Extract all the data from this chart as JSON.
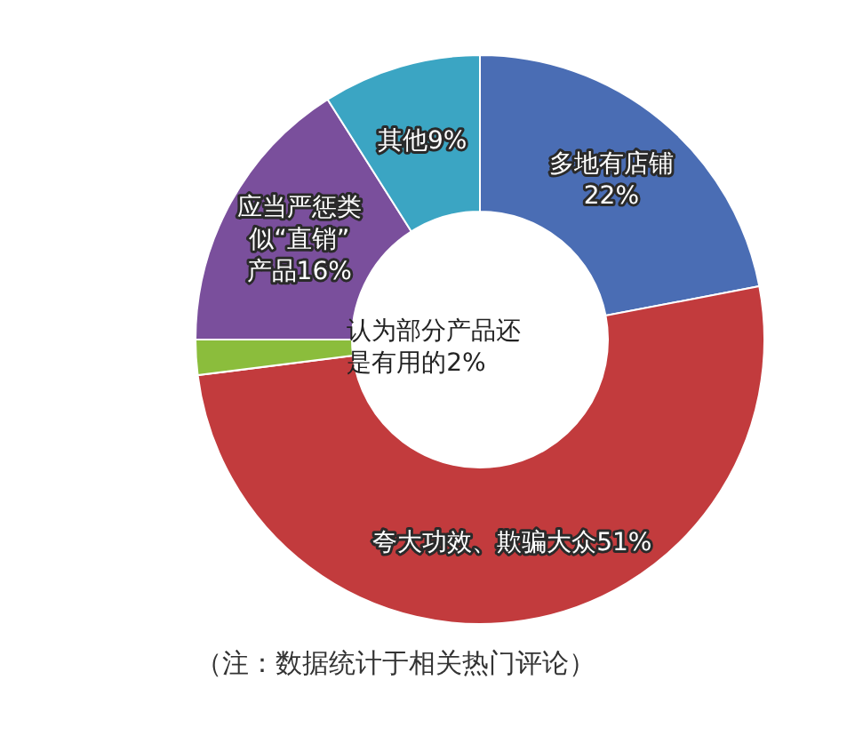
{
  "chart_data": {
    "type": "donut",
    "categories": [
      "多地有店铺",
      "夸大功效、欺骗大众",
      "认为部分产品还是有用的",
      "应当严惩类似“直销”产品",
      "其他"
    ],
    "values": [
      22,
      51,
      2,
      16,
      9
    ],
    "value_labels": [
      "22%",
      "51%",
      "2%",
      "16%",
      "9%"
    ],
    "colors": [
      "#4a6db4",
      "#c23b3d",
      "#8bbd3c",
      "#7a4f9c",
      "#3ba5c3"
    ],
    "annotations": [
      "（注：数据统计于相关热门评论）"
    ]
  }
}
